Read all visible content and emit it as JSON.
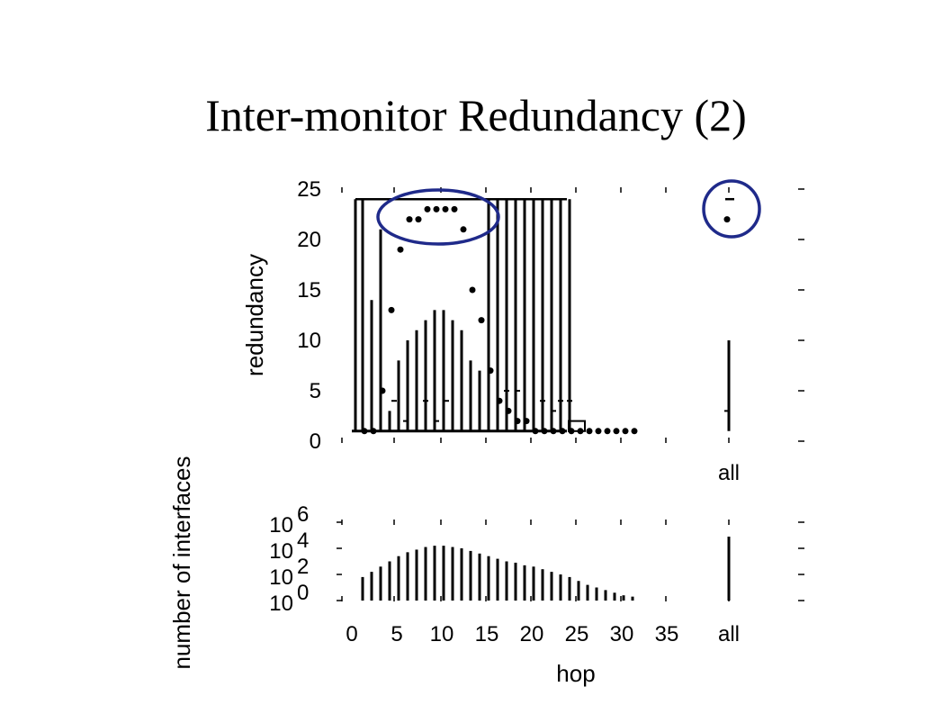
{
  "slide": {
    "title": "Inter-monitor Redundancy (2)"
  },
  "colors": {
    "ink": "#000000",
    "highlight": "#1f2a8a",
    "background": "#ffffff"
  },
  "chart_data": [
    {
      "type": "box",
      "ylabel": "redundancy",
      "ylim": [
        0,
        25
      ],
      "yticks": [
        0,
        5,
        10,
        15,
        20,
        25
      ],
      "extra_category_label": "all",
      "medians": [
        {
          "hop": 1,
          "value": 1
        },
        {
          "hop": 2,
          "value": 1
        },
        {
          "hop": 3,
          "value": 5
        },
        {
          "hop": 4,
          "value": 13
        },
        {
          "hop": 5,
          "value": 19
        },
        {
          "hop": 6,
          "value": 22
        },
        {
          "hop": 7,
          "value": 22
        },
        {
          "hop": 8,
          "value": 23
        },
        {
          "hop": 9,
          "value": 23
        },
        {
          "hop": 10,
          "value": 23
        },
        {
          "hop": 11,
          "value": 23
        },
        {
          "hop": 12,
          "value": 21
        },
        {
          "hop": 13,
          "value": 15
        },
        {
          "hop": 14,
          "value": 12
        },
        {
          "hop": 15,
          "value": 7
        },
        {
          "hop": 16,
          "value": 4
        },
        {
          "hop": 17,
          "value": 3
        },
        {
          "hop": 18,
          "value": 2
        },
        {
          "hop": 19,
          "value": 2
        },
        {
          "hop": 20,
          "value": 1
        },
        {
          "hop": 21,
          "value": 1
        },
        {
          "hop": 22,
          "value": 1
        },
        {
          "hop": 23,
          "value": 1
        },
        {
          "hop": 24,
          "value": 1
        },
        {
          "hop": 25,
          "value": 1
        },
        {
          "hop": 26,
          "value": 1
        },
        {
          "hop": 27,
          "value": 1
        },
        {
          "hop": 28,
          "value": 1
        },
        {
          "hop": 29,
          "value": 1
        },
        {
          "hop": 30,
          "value": 1
        },
        {
          "hop": 31,
          "value": 1
        }
      ],
      "all_median": 22,
      "upper_whiskers": [
        {
          "hop": 1,
          "value": 24
        },
        {
          "hop": 2,
          "value": 14
        },
        {
          "hop": 3,
          "value": 21
        },
        {
          "hop": 4,
          "value": 3
        },
        {
          "hop": 5,
          "value": 8
        },
        {
          "hop": 6,
          "value": 10
        },
        {
          "hop": 7,
          "value": 11
        },
        {
          "hop": 8,
          "value": 12
        },
        {
          "hop": 9,
          "value": 13
        },
        {
          "hop": 10,
          "value": 13
        },
        {
          "hop": 11,
          "value": 12
        },
        {
          "hop": 12,
          "value": 11
        },
        {
          "hop": 13,
          "value": 8
        },
        {
          "hop": 14,
          "value": 7
        },
        {
          "hop": 15,
          "value": 24
        },
        {
          "hop": 16,
          "value": 24
        },
        {
          "hop": 17,
          "value": 24
        },
        {
          "hop": 18,
          "value": 24
        },
        {
          "hop": 19,
          "value": 24
        },
        {
          "hop": 20,
          "value": 24
        },
        {
          "hop": 21,
          "value": 24
        },
        {
          "hop": 22,
          "value": 24
        },
        {
          "hop": 23,
          "value": 24
        },
        {
          "hop": 24,
          "value": 24
        }
      ],
      "all_upper_whisker": 10,
      "highlight_groups": [
        "hops 6-12",
        "all"
      ]
    },
    {
      "type": "bar",
      "xlabel": "hop",
      "ylabel": "number of interfaces",
      "yscale": "log",
      "ylim_exponents": [
        0,
        6
      ],
      "ytick_bases": [
        "10",
        "10",
        "10",
        "10"
      ],
      "ytick_exponents": [
        "0",
        "2",
        "4",
        "6"
      ],
      "xticks": [
        "0",
        "5",
        "10",
        "15",
        "20",
        "25",
        "30",
        "35",
        "all"
      ],
      "bars": [
        {
          "hop": 1,
          "log10": 1.8
        },
        {
          "hop": 2,
          "log10": 2.2
        },
        {
          "hop": 3,
          "log10": 2.6
        },
        {
          "hop": 4,
          "log10": 3.0
        },
        {
          "hop": 5,
          "log10": 3.4
        },
        {
          "hop": 6,
          "log10": 3.7
        },
        {
          "hop": 7,
          "log10": 3.9
        },
        {
          "hop": 8,
          "log10": 4.1
        },
        {
          "hop": 9,
          "log10": 4.2
        },
        {
          "hop": 10,
          "log10": 4.2
        },
        {
          "hop": 11,
          "log10": 4.1
        },
        {
          "hop": 12,
          "log10": 4.0
        },
        {
          "hop": 13,
          "log10": 3.8
        },
        {
          "hop": 14,
          "log10": 3.6
        },
        {
          "hop": 15,
          "log10": 3.4
        },
        {
          "hop": 16,
          "log10": 3.2
        },
        {
          "hop": 17,
          "log10": 3.0
        },
        {
          "hop": 18,
          "log10": 2.9
        },
        {
          "hop": 19,
          "log10": 2.7
        },
        {
          "hop": 20,
          "log10": 2.6
        },
        {
          "hop": 21,
          "log10": 2.4
        },
        {
          "hop": 22,
          "log10": 2.2
        },
        {
          "hop": 23,
          "log10": 2.0
        },
        {
          "hop": 24,
          "log10": 1.8
        },
        {
          "hop": 25,
          "log10": 1.5
        },
        {
          "hop": 26,
          "log10": 1.2
        },
        {
          "hop": 27,
          "log10": 1.0
        },
        {
          "hop": 28,
          "log10": 0.8
        },
        {
          "hop": 29,
          "log10": 0.6
        },
        {
          "hop": 30,
          "log10": 0.4
        },
        {
          "hop": 31,
          "log10": 0.3
        }
      ],
      "all_bar_log10": 4.9
    }
  ]
}
